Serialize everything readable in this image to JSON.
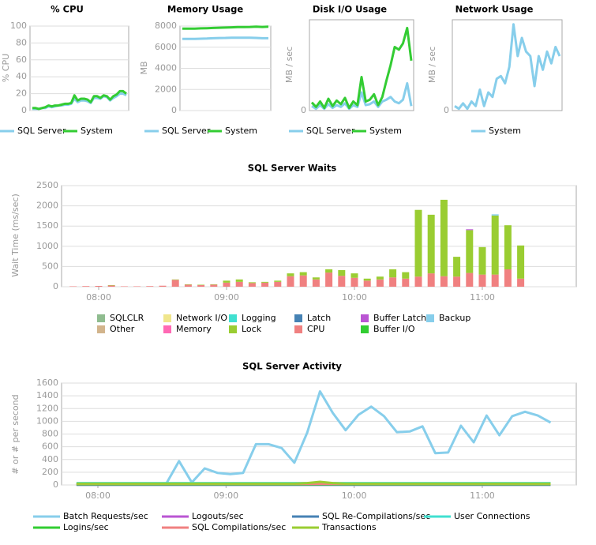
{
  "chart_data": [
    {
      "type": "line",
      "title": "% CPU",
      "y_label": "% CPU",
      "ylim": [
        0,
        100
      ],
      "yticks": [
        0,
        20,
        40,
        60,
        80,
        100
      ],
      "grid": true,
      "series": [
        {
          "name": "SQL Server",
          "color": "#87ceeb",
          "values": [
            2,
            2,
            2,
            3,
            3,
            5,
            4,
            5,
            6,
            6,
            7,
            7,
            8,
            14,
            10,
            12,
            12,
            11,
            9,
            15,
            15,
            14,
            17,
            16,
            12,
            15,
            17,
            20,
            20,
            18
          ]
        },
        {
          "name": "System",
          "color": "#33cc33",
          "values": [
            3,
            3,
            2,
            3,
            4,
            6,
            5,
            6,
            6,
            7,
            8,
            8,
            9,
            18,
            12,
            14,
            14,
            13,
            10,
            17,
            17,
            15,
            18,
            17,
            13,
            17,
            19,
            23,
            23,
            20
          ]
        }
      ]
    },
    {
      "type": "line",
      "title": "Memory Usage",
      "y_label": "MB",
      "ylim": [
        0,
        8000
      ],
      "yticks": [
        0,
        2000,
        4000,
        6000,
        8000
      ],
      "grid": true,
      "series": [
        {
          "name": "SQL Server",
          "color": "#87ceeb",
          "values": [
            6780,
            6780,
            6790,
            6800,
            6820,
            6850,
            6870,
            6880,
            6900,
            6900,
            6900,
            6900,
            6880,
            6850,
            6850
          ]
        },
        {
          "name": "System",
          "color": "#33cc33",
          "values": [
            7750,
            7750,
            7760,
            7780,
            7800,
            7820,
            7840,
            7860,
            7880,
            7900,
            7900,
            7920,
            7950,
            7920,
            7950
          ]
        }
      ]
    },
    {
      "type": "line",
      "title": "Disk I/O Usage",
      "y_label": "MB / sec",
      "ylim": [
        0,
        10
      ],
      "yticks": [
        0
      ],
      "grid": false,
      "series": [
        {
          "name": "SQL Server",
          "color": "#87ceeb",
          "values": [
            0.5,
            0.2,
            0.6,
            0.2,
            0.7,
            0.3,
            0.6,
            0.4,
            0.8,
            0.2,
            0.6,
            0.4,
            2.0,
            0.6,
            0.7,
            1.0,
            0.4,
            1.0,
            1.2,
            1.5,
            1.0,
            0.8,
            1.2,
            3.0,
            0.5
          ]
        },
        {
          "name": "System",
          "color": "#33cc33",
          "values": [
            0.9,
            0.4,
            1.0,
            0.3,
            1.3,
            0.5,
            1.1,
            0.7,
            1.4,
            0.3,
            1.0,
            0.6,
            3.7,
            1.0,
            1.2,
            1.8,
            0.6,
            1.5,
            3.3,
            5.0,
            7.0,
            6.7,
            7.4,
            9.1,
            5.5
          ]
        }
      ]
    },
    {
      "type": "line",
      "title": "Network Usage",
      "y_label": "MB / sec",
      "ylim": [
        0,
        10
      ],
      "yticks": [
        0
      ],
      "grid": false,
      "series": [
        {
          "name": "System",
          "color": "#87ceeb",
          "values": [
            0.5,
            0.2,
            0.8,
            0.2,
            1.0,
            0.5,
            2.3,
            0.5,
            2.0,
            1.5,
            3.5,
            3.8,
            3.0,
            4.8,
            9.5,
            6.0,
            8.0,
            6.5,
            6.0,
            2.7,
            6.0,
            4.5,
            6.5,
            5.2,
            7.0,
            6.0
          ]
        }
      ]
    },
    {
      "type": "stacked_bar",
      "title": "SQL Server Waits",
      "y_label": "Wait Time (ms/sec)",
      "ylim": [
        0,
        2500
      ],
      "yticks": [
        0,
        500,
        1000,
        1500,
        2000,
        2500
      ],
      "grid": true,
      "categories": [
        null,
        null,
        "08:00",
        null,
        null,
        null,
        null,
        null,
        null,
        null,
        null,
        null,
        "09:00",
        null,
        null,
        null,
        null,
        null,
        null,
        null,
        null,
        null,
        "10:00",
        null,
        null,
        null,
        null,
        null,
        null,
        null,
        null,
        null,
        "11:00",
        null,
        null,
        null
      ],
      "series": [
        {
          "name": "SQLCLR",
          "color": "#8fbc8f",
          "values": [
            0,
            0,
            0,
            0,
            0,
            0,
            0,
            0,
            0,
            0,
            0,
            0,
            0,
            0,
            0,
            0,
            0,
            0,
            0,
            0,
            0,
            0,
            0,
            0,
            0,
            0,
            0,
            0,
            0,
            0,
            0,
            0,
            0,
            0,
            0,
            0
          ]
        },
        {
          "name": "Network I/O",
          "color": "#f0e68c",
          "values": [
            0,
            0,
            0,
            0,
            0,
            0,
            0,
            0,
            0,
            0,
            0,
            0,
            0,
            0,
            0,
            0,
            0,
            0,
            0,
            0,
            0,
            0,
            0,
            0,
            0,
            0,
            0,
            0,
            0,
            0,
            0,
            0,
            0,
            0,
            0,
            0
          ]
        },
        {
          "name": "Logging",
          "color": "#40e0d0",
          "values": [
            0,
            0,
            0,
            0,
            0,
            0,
            0,
            0,
            0,
            0,
            0,
            0,
            0,
            0,
            0,
            0,
            0,
            0,
            0,
            0,
            0,
            0,
            0,
            0,
            0,
            0,
            0,
            0,
            0,
            0,
            0,
            0,
            0,
            0,
            0,
            0
          ]
        },
        {
          "name": "Latch",
          "color": "#4682b4",
          "values": [
            0,
            0,
            0,
            0,
            0,
            0,
            0,
            0,
            0,
            0,
            0,
            0,
            0,
            0,
            0,
            0,
            0,
            0,
            0,
            0,
            0,
            0,
            0,
            0,
            0,
            0,
            0,
            0,
            0,
            0,
            0,
            0,
            0,
            0,
            0,
            0
          ]
        },
        {
          "name": "Buffer Latch",
          "color": "#ba55d3",
          "values": [
            0,
            0,
            0,
            0,
            0,
            0,
            0,
            0,
            0,
            0,
            0,
            0,
            0,
            0,
            0,
            0,
            0,
            0,
            0,
            0,
            0,
            0,
            0,
            0,
            0,
            0,
            0,
            0,
            0,
            0,
            0,
            20,
            0,
            0,
            0,
            0
          ]
        },
        {
          "name": "Backup",
          "color": "#87ceeb",
          "values": [
            0,
            0,
            0,
            0,
            0,
            0,
            0,
            0,
            0,
            0,
            0,
            0,
            0,
            0,
            0,
            0,
            0,
            0,
            0,
            0,
            0,
            0,
            0,
            0,
            0,
            0,
            0,
            0,
            0,
            0,
            0,
            0,
            0,
            30,
            0,
            0
          ]
        },
        {
          "name": "Other",
          "color": "#d2b48c",
          "values": [
            0,
            0,
            0,
            0,
            0,
            0,
            0,
            0,
            0,
            0,
            0,
            0,
            0,
            0,
            0,
            0,
            0,
            0,
            0,
            0,
            0,
            0,
            0,
            0,
            0,
            0,
            0,
            0,
            0,
            0,
            0,
            0,
            0,
            0,
            0,
            0
          ]
        },
        {
          "name": "Memory",
          "color": "#ff69b4",
          "values": [
            0,
            0,
            0,
            0,
            0,
            0,
            0,
            0,
            0,
            0,
            0,
            0,
            0,
            0,
            0,
            0,
            0,
            0,
            0,
            0,
            0,
            0,
            0,
            0,
            0,
            0,
            0,
            0,
            0,
            0,
            0,
            0,
            0,
            0,
            0,
            0
          ]
        },
        {
          "name": "Lock",
          "color": "#9acd32",
          "values": [
            0,
            0,
            0,
            10,
            0,
            0,
            0,
            0,
            10,
            10,
            10,
            10,
            50,
            60,
            20,
            20,
            30,
            70,
            80,
            50,
            80,
            140,
            110,
            50,
            70,
            200,
            160,
            1650,
            1450,
            1890,
            490,
            1060,
            680,
            1460,
            1090,
            820
          ]
        },
        {
          "name": "CPU",
          "color": "#f08080",
          "values": [
            10,
            15,
            20,
            30,
            10,
            10,
            15,
            25,
            170,
            50,
            40,
            50,
            100,
            120,
            90,
            100,
            120,
            260,
            280,
            180,
            350,
            270,
            220,
            150,
            180,
            230,
            200,
            250,
            330,
            260,
            250,
            340,
            300,
            300,
            430,
            200
          ]
        },
        {
          "name": "Buffer I/O",
          "color": "#32cd32",
          "values": [
            0,
            0,
            0,
            0,
            0,
            0,
            0,
            0,
            0,
            0,
            0,
            0,
            0,
            0,
            0,
            0,
            0,
            0,
            0,
            0,
            0,
            0,
            0,
            0,
            0,
            0,
            0,
            0,
            0,
            0,
            0,
            0,
            0,
            0,
            0,
            0
          ]
        }
      ]
    },
    {
      "type": "line",
      "title": "SQL Server Activity",
      "y_label": "# or # per second",
      "ylim": [
        0,
        1600
      ],
      "yticks": [
        0,
        200,
        400,
        600,
        800,
        1000,
        1200,
        1400,
        1600
      ],
      "grid": true,
      "xlim": [
        463,
        704
      ],
      "xticks": [
        {
          "value": 480,
          "label": "08:00"
        },
        {
          "value": 540,
          "label": "09:00"
        },
        {
          "value": 600,
          "label": "10:00"
        },
        {
          "value": 660,
          "label": "11:00"
        }
      ],
      "x": [
        470,
        476,
        482,
        488,
        494,
        500,
        506,
        512,
        518,
        524,
        530,
        536,
        542,
        548,
        554,
        560,
        566,
        572,
        578,
        584,
        590,
        596,
        602,
        608,
        614,
        620,
        626,
        632,
        638,
        644,
        650,
        656,
        662,
        668,
        674,
        680,
        686,
        692
      ],
      "series": [
        {
          "name": "Batch Requests/sec",
          "color": "#87ceeb",
          "values": [
            20,
            20,
            20,
            20,
            20,
            20,
            20,
            20,
            375,
            40,
            260,
            190,
            170,
            190,
            640,
            640,
            580,
            350,
            820,
            1470,
            1130,
            860,
            1100,
            1230,
            1080,
            830,
            840,
            920,
            500,
            510,
            930,
            670,
            1090,
            780,
            1080,
            1150,
            1090,
            980
          ]
        },
        {
          "name": "Logouts/sec",
          "color": "#ba55d3",
          "values": [
            5,
            5,
            5,
            5,
            5,
            5,
            5,
            5,
            5,
            5,
            5,
            5,
            5,
            5,
            5,
            5,
            5,
            5,
            5,
            5,
            5,
            5,
            5,
            5,
            5,
            5,
            5,
            5,
            5,
            5,
            5,
            5,
            5,
            5,
            5,
            5,
            5,
            5
          ]
        },
        {
          "name": "SQL Re-Compilations/sec",
          "color": "#4682b4",
          "values": [
            2,
            2,
            2,
            2,
            2,
            2,
            2,
            2,
            2,
            2,
            2,
            2,
            2,
            2,
            2,
            2,
            2,
            2,
            2,
            2,
            2,
            2,
            2,
            2,
            2,
            2,
            2,
            2,
            2,
            2,
            2,
            2,
            2,
            2,
            2,
            2,
            2,
            2
          ]
        },
        {
          "name": "User Connections",
          "color": "#40e0d0",
          "values": [
            30,
            30,
            30,
            30,
            30,
            30,
            30,
            30,
            30,
            30,
            30,
            30,
            30,
            30,
            30,
            30,
            30,
            30,
            30,
            30,
            30,
            30,
            30,
            30,
            30,
            30,
            30,
            30,
            30,
            30,
            30,
            30,
            30,
            30,
            30,
            30,
            30,
            30
          ]
        },
        {
          "name": "Logins/sec",
          "color": "#32cd32",
          "values": [
            10,
            10,
            10,
            10,
            10,
            10,
            10,
            10,
            10,
            10,
            10,
            10,
            10,
            10,
            10,
            10,
            10,
            10,
            10,
            10,
            10,
            10,
            10,
            10,
            10,
            10,
            10,
            10,
            10,
            10,
            10,
            10,
            10,
            10,
            10,
            10,
            10,
            10
          ]
        },
        {
          "name": "SQL Compilations/sec",
          "color": "#f08080",
          "values": [
            15,
            15,
            15,
            15,
            15,
            15,
            15,
            15,
            15,
            15,
            15,
            15,
            15,
            15,
            15,
            15,
            15,
            15,
            15,
            15,
            15,
            15,
            15,
            15,
            15,
            15,
            15,
            15,
            15,
            15,
            15,
            15,
            15,
            15,
            15,
            15,
            15,
            15
          ]
        },
        {
          "name": "Transactions",
          "color": "#9acd32",
          "values": [
            20,
            20,
            20,
            20,
            20,
            20,
            20,
            20,
            20,
            20,
            20,
            20,
            20,
            20,
            20,
            20,
            20,
            20,
            30,
            50,
            30,
            20,
            20,
            20,
            20,
            20,
            20,
            20,
            20,
            20,
            20,
            20,
            20,
            20,
            20,
            20,
            20,
            20
          ]
        }
      ]
    }
  ]
}
